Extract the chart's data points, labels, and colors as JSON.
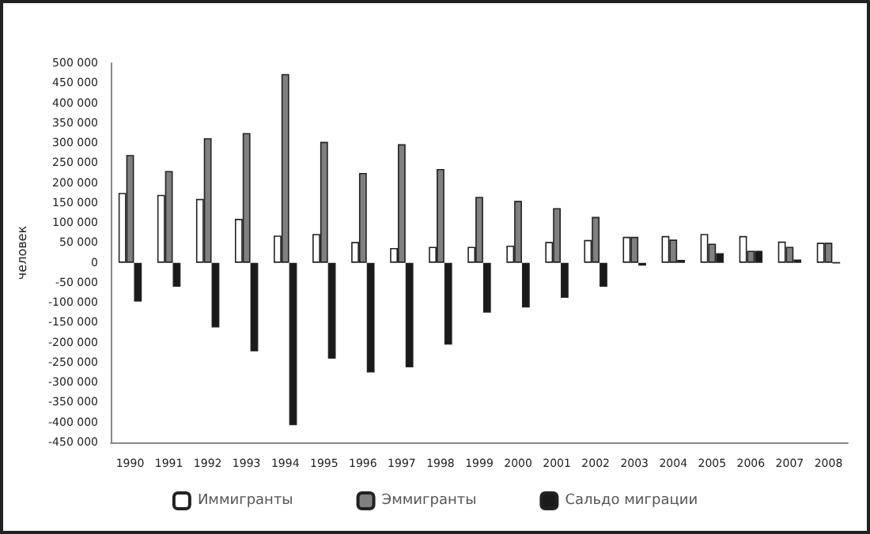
{
  "chart_data": {
    "type": "bar",
    "ylabel": "человек",
    "categories": [
      "1990",
      "1991",
      "1992",
      "1993",
      "1994",
      "1995",
      "1996",
      "1997",
      "1998",
      "1999",
      "2000",
      "2001",
      "2002",
      "2003",
      "2004",
      "2005",
      "2006",
      "2007",
      "2008"
    ],
    "series": [
      {
        "name": "Иммигранты",
        "color": "#ffffff",
        "values": [
          175000,
          170000,
          160000,
          110000,
          68000,
          72000,
          52000,
          37000,
          40000,
          40000,
          43000,
          52000,
          57000,
          65000,
          67000,
          72000,
          67000,
          53000,
          50000
        ]
      },
      {
        "name": "Эммигранты",
        "color": "#808080",
        "values": [
          270000,
          230000,
          312000,
          325000,
          473000,
          303000,
          225000,
          297000,
          235000,
          165000,
          155000,
          137000,
          115000,
          65000,
          58000,
          48000,
          30000,
          40000,
          50000
        ]
      },
      {
        "name": "Сальдо миграции",
        "color": "#1a1a1a",
        "values": [
          -97000,
          -60000,
          -162000,
          -222000,
          -407000,
          -240000,
          -275000,
          -262000,
          -205000,
          -125000,
          -112000,
          -88000,
          -60000,
          -7000,
          7000,
          24000,
          30000,
          8000,
          0
        ]
      }
    ],
    "ylim": [
      -450000,
      500000
    ],
    "yticks": [
      {
        "value": -450000,
        "label": "-450 000"
      },
      {
        "value": -400000,
        "label": "-400 000"
      },
      {
        "value": -350000,
        "label": "-350 000"
      },
      {
        "value": -300000,
        "label": "-300 000"
      },
      {
        "value": -250000,
        "label": "-250 000"
      },
      {
        "value": -200000,
        "label": "-200 000"
      },
      {
        "value": -150000,
        "label": "-150 000"
      },
      {
        "value": -100000,
        "label": "-100 000"
      },
      {
        "value": -50000,
        "label": "-50 000"
      },
      0,
      {
        "value": 50000,
        "label": "50 000"
      },
      {
        "value": 100000,
        "label": "100 000"
      },
      {
        "value": 150000,
        "label": "150 000"
      },
      {
        "value": 200000,
        "label": "200 000"
      },
      {
        "value": 250000,
        "label": "250 000"
      },
      {
        "value": 300000,
        "label": "300 000"
      },
      {
        "value": 350000,
        "label": "350 000"
      },
      {
        "value": 400000,
        "label": "400 000"
      },
      {
        "value": 450000,
        "label": "450 000"
      },
      {
        "value": 500000,
        "label": "500 000"
      }
    ],
    "grid": false,
    "legend": "bottom"
  }
}
